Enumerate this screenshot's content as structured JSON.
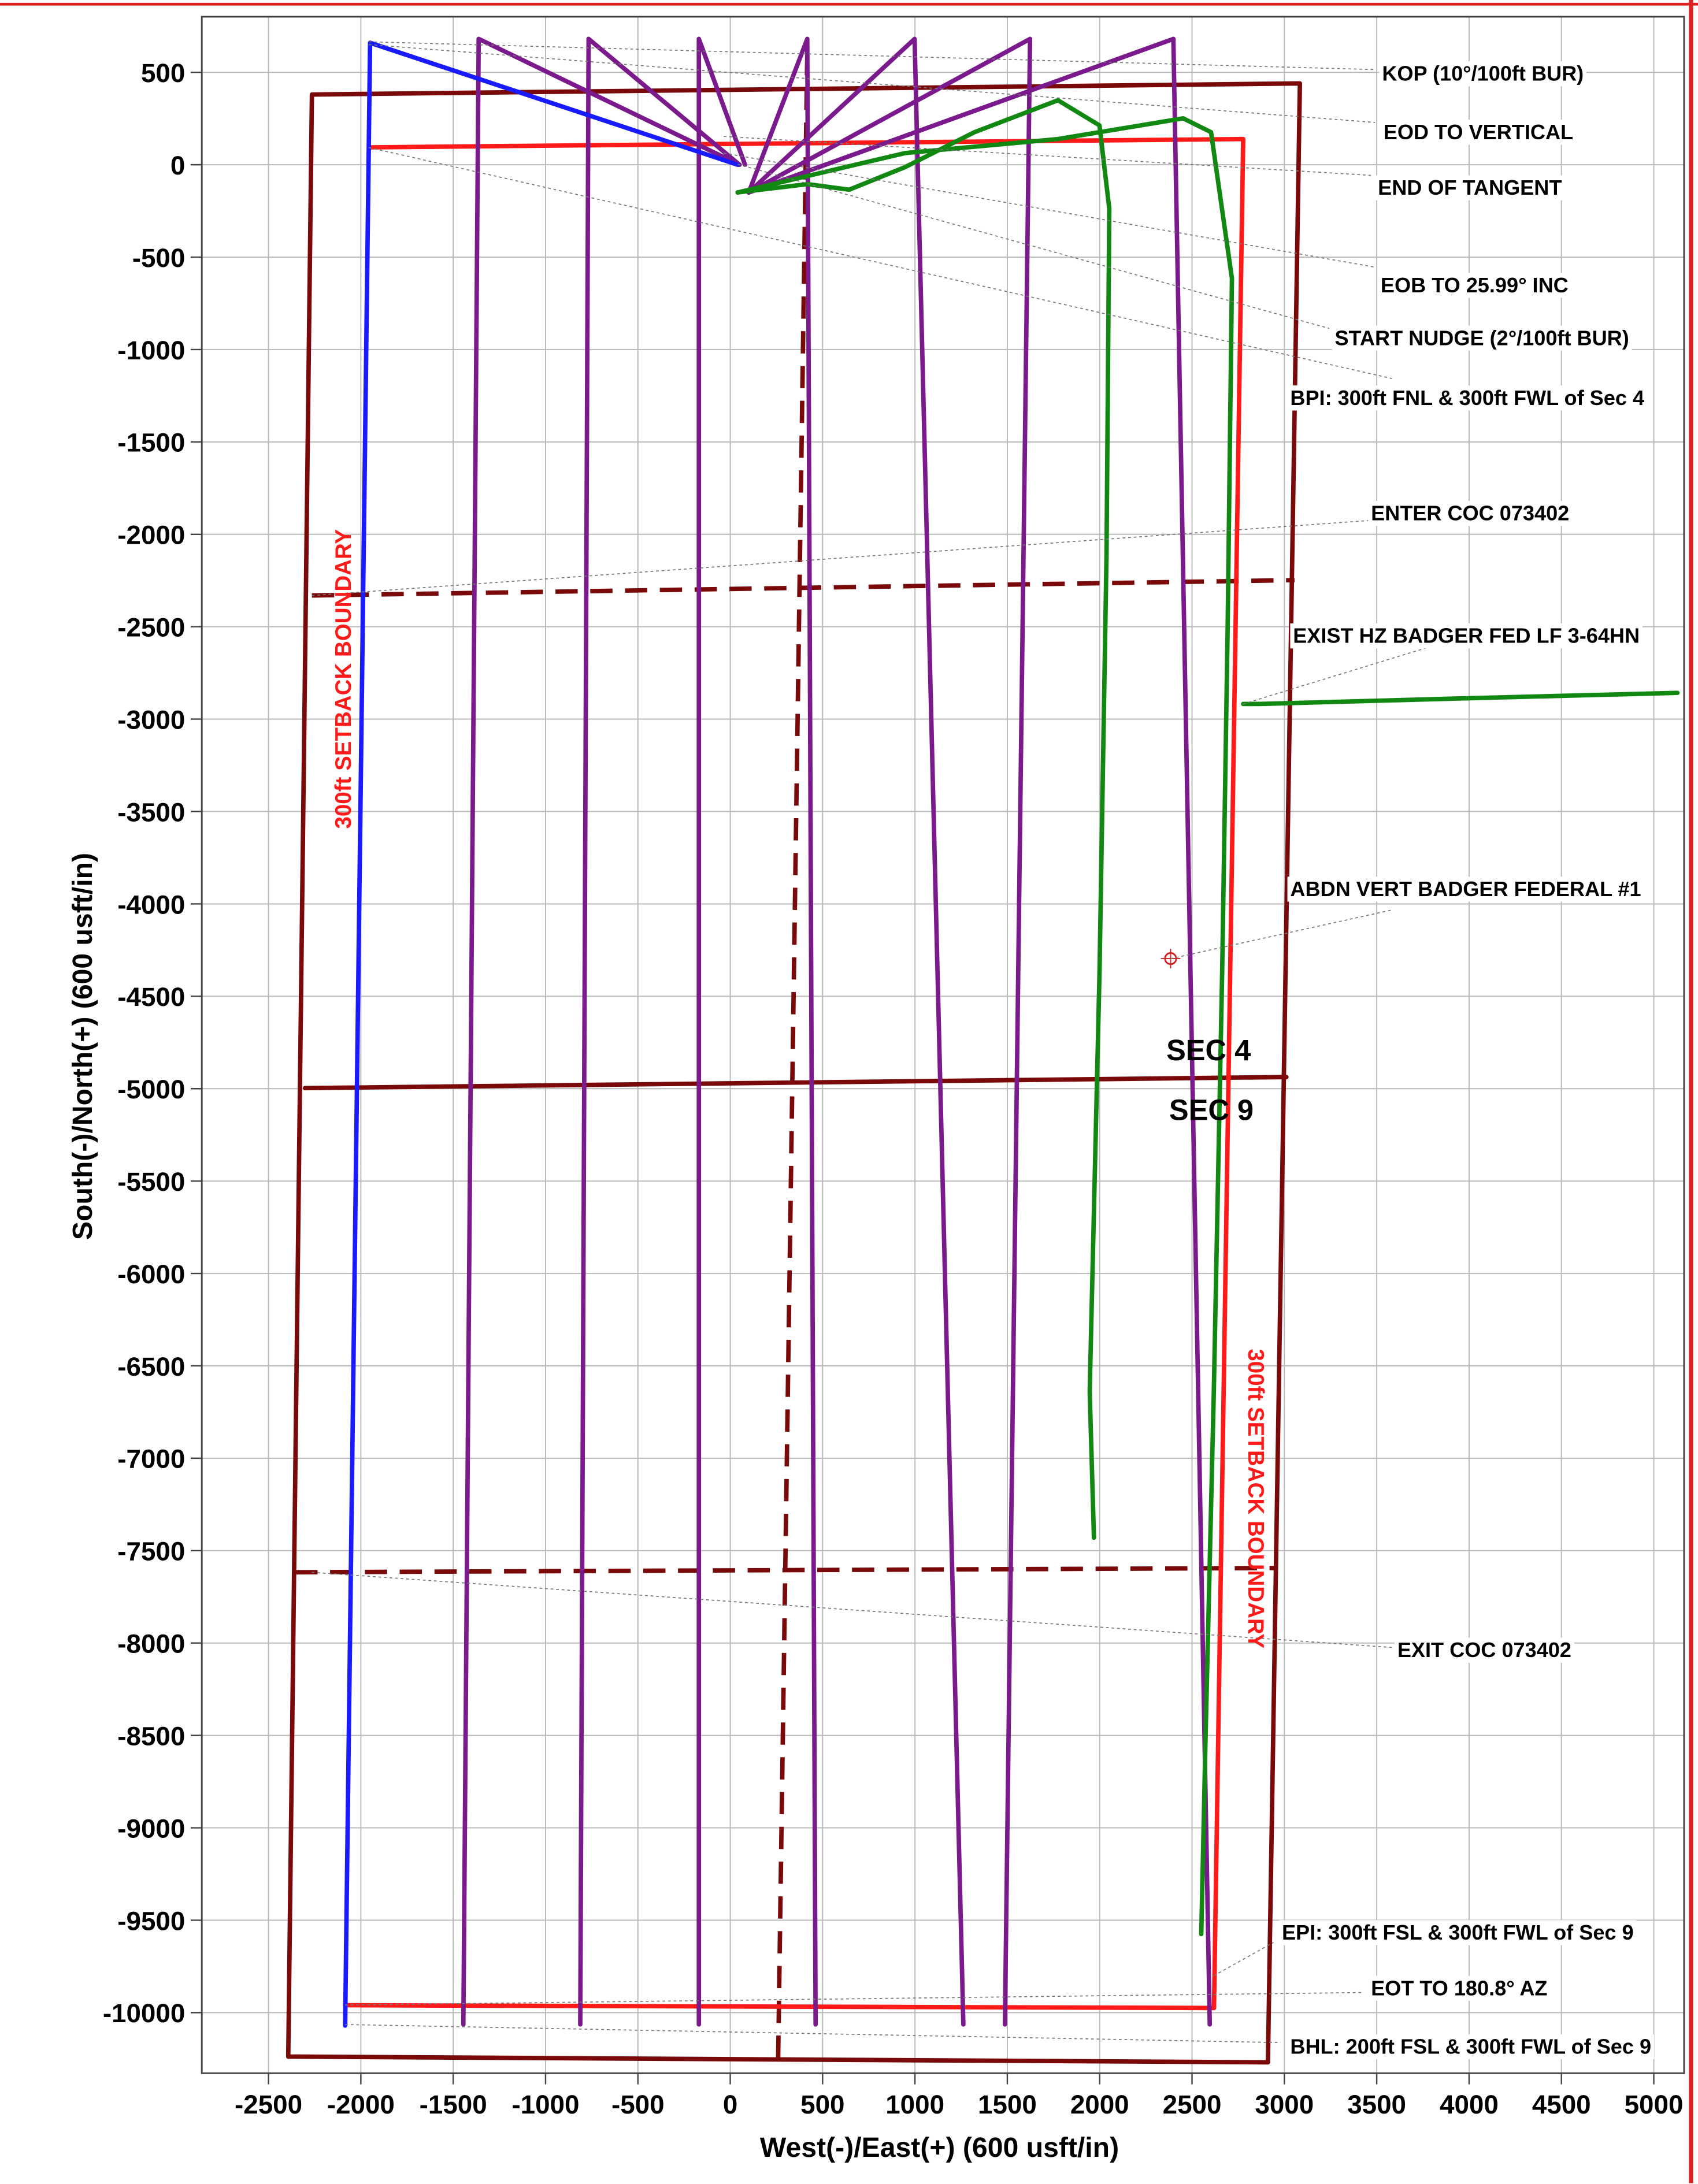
{
  "chart_data": {
    "type": "line",
    "xlabel": "West(-)/East(+) (600 usft/in)",
    "ylabel": "South(-)/North(+) (600 usft/in)",
    "xlim": [
      -2861,
      5164
    ],
    "ylim": [
      -10328,
      801
    ],
    "xticks": [
      -2500,
      -2000,
      -1500,
      -1000,
      -500,
      0,
      500,
      1000,
      1500,
      2000,
      2500,
      3000,
      3500,
      4000,
      4500,
      5000
    ],
    "yticks": [
      500,
      0,
      -500,
      -1000,
      -1500,
      -2000,
      -2500,
      -3000,
      -3500,
      -4000,
      -4500,
      -5000,
      -5500,
      -6000,
      -6500,
      -7000,
      -7500,
      -8000,
      -8500,
      -9000,
      -9500,
      -10000
    ],
    "grid": true,
    "series": [
      {
        "color": "#7a0a0a",
        "x": [
          -2265,
          3084,
          2911,
          -2393,
          -2265
        ],
        "values": [
          380,
          440,
          -10269,
          -10238,
          380
        ]
      },
      {
        "color": "#7a0a0a",
        "x": [
          -2302,
          3011
        ],
        "values": [
          -4997,
          -4937
        ]
      },
      {
        "color": "#7a0a0a",
        "dash": true,
        "x": [
          -2265,
          3055
        ],
        "values": [
          -2331,
          -2248
        ]
      },
      {
        "color": "#7a0a0a",
        "dash": true,
        "x": [
          -2355,
          2966
        ],
        "values": [
          -7617,
          -7594
        ]
      },
      {
        "color": "#7a0a0a",
        "dash": true,
        "x": [
          417,
          259
        ],
        "values": [
          605,
          -10269
        ]
      },
      {
        "color": "#ff1a1a",
        "x": [
          -1956,
          2777,
          2619,
          -2085
        ],
        "values": [
          94,
          139,
          -9975,
          -9960
        ]
      },
      {
        "color": "#7b1a8c",
        "x": [
          50,
          -1362,
          -1445
        ],
        "values": [
          0,
          681,
          -10064
        ]
      },
      {
        "color": "#7b1a8c",
        "x": [
          50,
          -767,
          -812
        ],
        "values": [
          0,
          681,
          -10064
        ]
      },
      {
        "color": "#7b1a8c",
        "x": [
          80,
          -170,
          -170
        ],
        "values": [
          0,
          681,
          -10064
        ]
      },
      {
        "color": "#7b1a8c",
        "x": [
          100,
          417,
          462
        ],
        "values": [
          -150,
          681,
          -10064
        ]
      },
      {
        "color": "#7b1a8c",
        "x": [
          100,
          998,
          1262
        ],
        "values": [
          -150,
          681,
          -10064
        ]
      },
      {
        "color": "#7b1a8c",
        "x": [
          100,
          1623,
          1487
        ],
        "values": [
          -150,
          681,
          -10064
        ]
      },
      {
        "color": "#7b1a8c",
        "x": [
          100,
          2399,
          2596
        ],
        "values": [
          -150,
          681,
          -10064
        ]
      },
      {
        "color": "#118811",
        "x": [
          40,
          418,
          644,
          946,
          1322,
          1774,
          1999,
          2052,
          2037,
          1999,
          1946,
          1969
        ],
        "values": [
          -150,
          -105,
          -135,
          -13,
          176,
          349,
          213,
          -238,
          -2120,
          -4379,
          -6639,
          -7430
        ]
      },
      {
        "color": "#118811",
        "x": [
          40,
          946,
          1774,
          2452,
          2603,
          2716,
          2693,
          2663,
          2618,
          2573,
          2550
        ],
        "values": [
          -150,
          63,
          139,
          251,
          176,
          -615,
          -2498,
          -4379,
          -6639,
          -8521,
          -9575
        ]
      },
      {
        "color": "#118811",
        "x": [
          2777,
          2867,
          3960,
          5128
        ],
        "values": [
          -2918,
          -2918,
          -2888,
          -2858
        ]
      },
      {
        "color": "#1a1aff",
        "x": [
          40,
          -1950,
          -2085
        ],
        "values": [
          0,
          660,
          -10070
        ]
      },
      {
        "color": "#cc2222",
        "marker": true,
        "x": [
          2384
        ],
        "values": [
          -4296
        ]
      }
    ],
    "annotations": [
      "KOP (10°/100ft BUR)",
      "EOD TO VERTICAL",
      "END OF TANGENT",
      "EOB TO 25.99° INC",
      "START NUDGE (2°/100ft BUR)",
      "BPI: 300ft FNL & 300ft FWL of Sec 4",
      "ENTER COC 073402",
      "EXIST HZ BADGER FED LF 3-64HN",
      "ABDN VERT BADGER FEDERAL #1",
      "EXIT COC 073402",
      "EPI: 300ft FSL & 300ft FWL of Sec 9",
      "EOT TO 180.8° AZ",
      "BHL: 200ft FSL & 300ft FWL of Sec 9"
    ],
    "section_labels": [
      "SEC 4",
      "SEC 9"
    ],
    "setback_label": "300ft SETBACK BOUNDARY"
  }
}
